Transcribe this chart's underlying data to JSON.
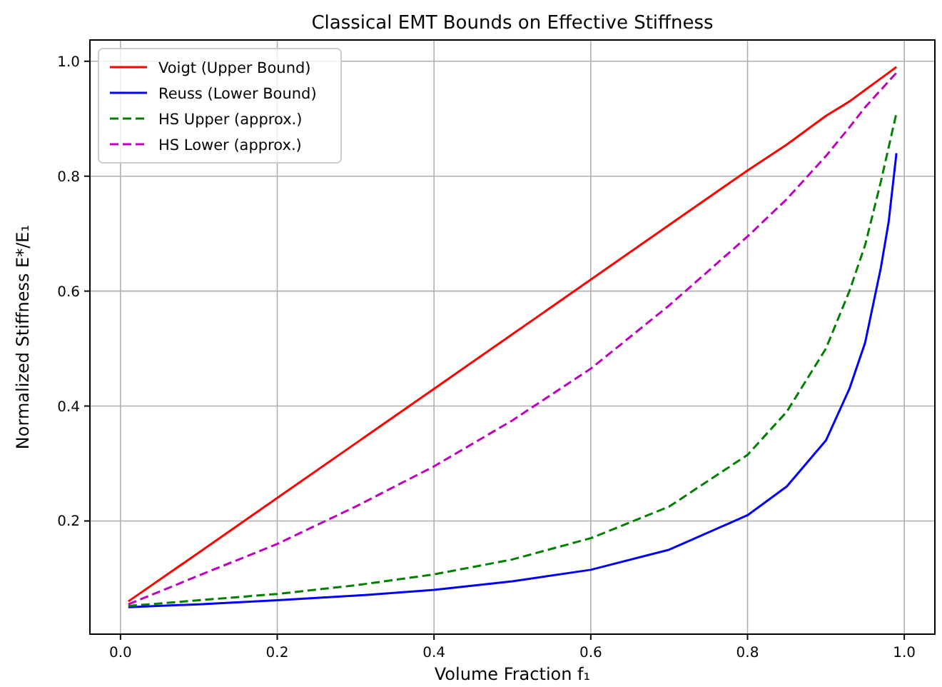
{
  "chart_data": {
    "type": "line",
    "title": "Classical EMT Bounds on Effective Stiffness",
    "xlabel": "Volume Fraction f₁",
    "ylabel": "Normalized Stiffness E*/E₁",
    "x": [
      0.01,
      0.1,
      0.2,
      0.3,
      0.4,
      0.5,
      0.6,
      0.7,
      0.8,
      0.85,
      0.9,
      0.93,
      0.95,
      0.97,
      0.98,
      0.99
    ],
    "series": [
      {
        "name": "Voigt (Upper Bound)",
        "color": "#ff0000",
        "line_style": "solid",
        "values": [
          0.06,
          0.145,
          0.24,
          0.335,
          0.43,
          0.525,
          0.62,
          0.715,
          0.81,
          0.855,
          0.905,
          0.93,
          0.95,
          0.97,
          0.98,
          0.99
        ]
      },
      {
        "name": "Reuss (Lower Bound)",
        "color": "#0000ff",
        "line_style": "solid",
        "values": [
          0.05,
          0.055,
          0.062,
          0.07,
          0.08,
          0.095,
          0.115,
          0.15,
          0.21,
          0.26,
          0.34,
          0.43,
          0.51,
          0.64,
          0.72,
          0.84
        ]
      },
      {
        "name": "HS Upper (approx.)",
        "color": "#008000",
        "line_style": "dashed",
        "values": [
          0.052,
          0.062,
          0.073,
          0.088,
          0.107,
          0.133,
          0.17,
          0.225,
          0.315,
          0.39,
          0.5,
          0.6,
          0.68,
          0.79,
          0.85,
          0.91
        ]
      },
      {
        "name": "HS Lower (approx.)",
        "color": "#bf00bf",
        "line_style": "dashed",
        "values": [
          0.055,
          0.105,
          0.16,
          0.225,
          0.295,
          0.375,
          0.465,
          0.575,
          0.695,
          0.76,
          0.835,
          0.885,
          0.92,
          0.95,
          0.965,
          0.98
        ]
      }
    ],
    "xlim": [
      -0.039,
      1.039
    ],
    "ylim": [
      0.003,
      1.037
    ],
    "xticks": [
      {
        "value": 0,
        "label": "0.0"
      },
      0.2,
      0.4,
      0.6,
      0.8,
      {
        "value": 1,
        "label": "1.0"
      }
    ],
    "yticks": [
      0.2,
      0.4,
      0.6,
      0.8,
      {
        "value": 1,
        "label": "1.0"
      }
    ],
    "grid": true,
    "legend": "top left",
    "marker": "none"
  }
}
